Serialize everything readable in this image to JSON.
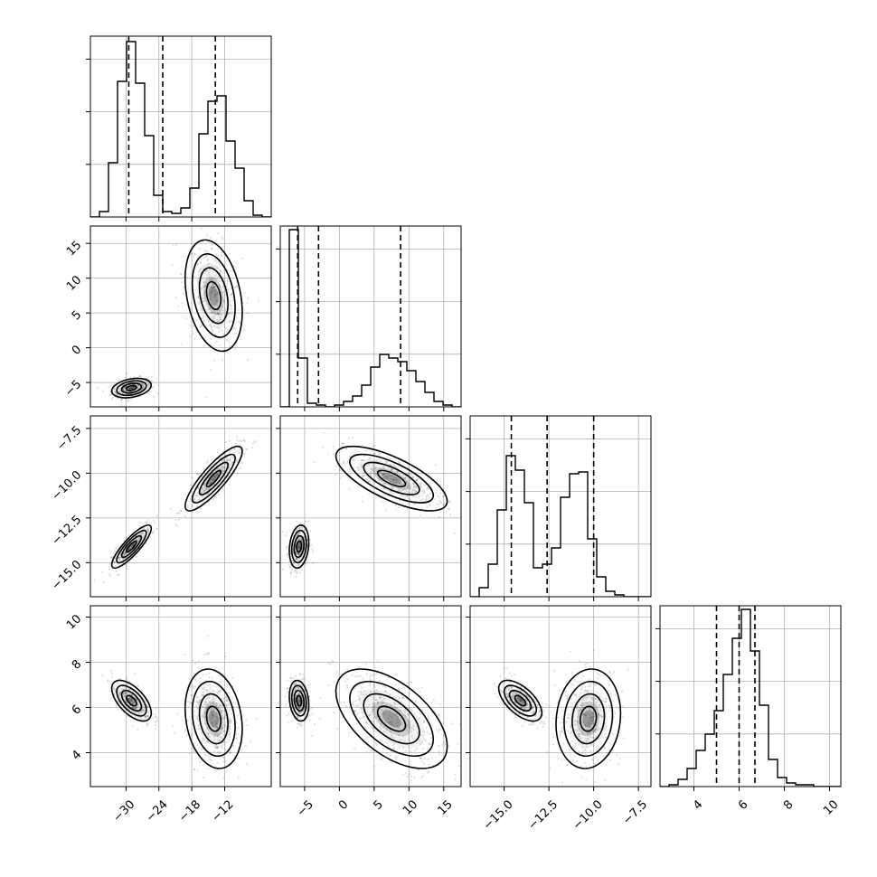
{
  "chart_data": {
    "type": "corner",
    "params": [
      {
        "range": [
          -36.5,
          -3.5
        ],
        "ticks": [
          -30,
          -24,
          -18,
          -12
        ],
        "tick_labels": [
          "−30",
          "−24",
          "−18",
          "−12"
        ],
        "quantiles": [
          -29.5,
          -23.3,
          -13.7
        ],
        "hist_counts": [
          0,
          0.03,
          0.3,
          0.75,
          0.97,
          0.74,
          0.45,
          0.12,
          0.03,
          0.02,
          0.05,
          0.16,
          0.46,
          0.64,
          0.67,
          0.42,
          0.27,
          0.09,
          0.01,
          0
        ]
      },
      {
        "range": [
          -8.5,
          17.5
        ],
        "ticks": [
          -5,
          0,
          5,
          10,
          15
        ],
        "tick_labels": [
          "−5",
          "0",
          "5",
          "10",
          "15"
        ],
        "quantiles": [
          -6.0,
          -3.0,
          8.8
        ],
        "hist_counts": [
          0,
          0.98,
          0.27,
          0.02,
          0.01,
          0,
          0.01,
          0.03,
          0.06,
          0.12,
          0.22,
          0.29,
          0.27,
          0.25,
          0.2,
          0.14,
          0.08,
          0.03,
          0.01,
          0
        ]
      },
      {
        "range": [
          -16.9,
          -6.8
        ],
        "ticks": [
          -15.0,
          -12.5,
          -10.0,
          -7.5
        ],
        "tick_labels": [
          "−15.0",
          "−12.5",
          "−10.0",
          "−7.5"
        ],
        "quantiles": [
          -14.6,
          -12.6,
          -10.0
        ],
        "hist_counts": [
          0,
          0.05,
          0.18,
          0.48,
          0.78,
          0.7,
          0.52,
          0.16,
          0.18,
          0.27,
          0.55,
          0.68,
          0.69,
          0.32,
          0.11,
          0.03,
          0.01,
          0,
          0,
          0
        ]
      },
      {
        "range": [
          2.5,
          10.5
        ],
        "ticks": [
          4,
          6,
          8,
          10
        ],
        "tick_labels": [
          "4",
          "6",
          "8",
          "10"
        ],
        "quantiles": [
          5.0,
          6.0,
          6.7
        ],
        "hist_counts": [
          0,
          0.01,
          0.04,
          0.1,
          0.2,
          0.29,
          0.42,
          0.62,
          0.82,
          0.98,
          0.75,
          0.45,
          0.15,
          0.05,
          0.02,
          0.01,
          0.01,
          0,
          0,
          0
        ]
      }
    ],
    "y_axes": [
      null,
      {
        "ticks": [
          -5,
          0,
          5,
          10,
          15
        ],
        "tick_labels": [
          "−5",
          "0",
          "5",
          "10",
          "15"
        ]
      },
      {
        "ticks": [
          -15.0,
          -12.5,
          -10.0,
          -7.5
        ],
        "tick_labels": [
          "−15.0",
          "−12.5",
          "−10.0",
          "−7.5"
        ]
      },
      {
        "ticks": [
          4,
          6,
          8,
          10
        ],
        "tick_labels": [
          "4",
          "6",
          "8",
          "10"
        ]
      }
    ],
    "clusters": [
      {
        "center": [
          -29.0,
          -5.8,
          -14.1,
          6.3
        ],
        "spread": [
          1.8,
          0.7,
          0.6,
          0.45
        ],
        "corr": [
          [
            0,
            1,
            0.3
          ],
          [
            0,
            2,
            0.85
          ],
          [
            0,
            3,
            -0.6
          ],
          [
            1,
            2,
            0.2
          ],
          [
            1,
            3,
            -0.2
          ],
          [
            2,
            3,
            -0.6
          ]
        ],
        "weight": 0.5
      },
      {
        "center": [
          -14.0,
          7.5,
          -10.3,
          5.5
        ],
        "spread": [
          2.6,
          4.0,
          0.9,
          1.1
        ],
        "corr": [
          [
            0,
            1,
            -0.3
          ],
          [
            0,
            2,
            0.85
          ],
          [
            0,
            3,
            -0.2
          ],
          [
            1,
            2,
            -0.7
          ],
          [
            1,
            3,
            -0.55
          ],
          [
            2,
            3,
            0.1
          ]
        ],
        "weight": 0.5
      }
    ],
    "grid": true
  }
}
